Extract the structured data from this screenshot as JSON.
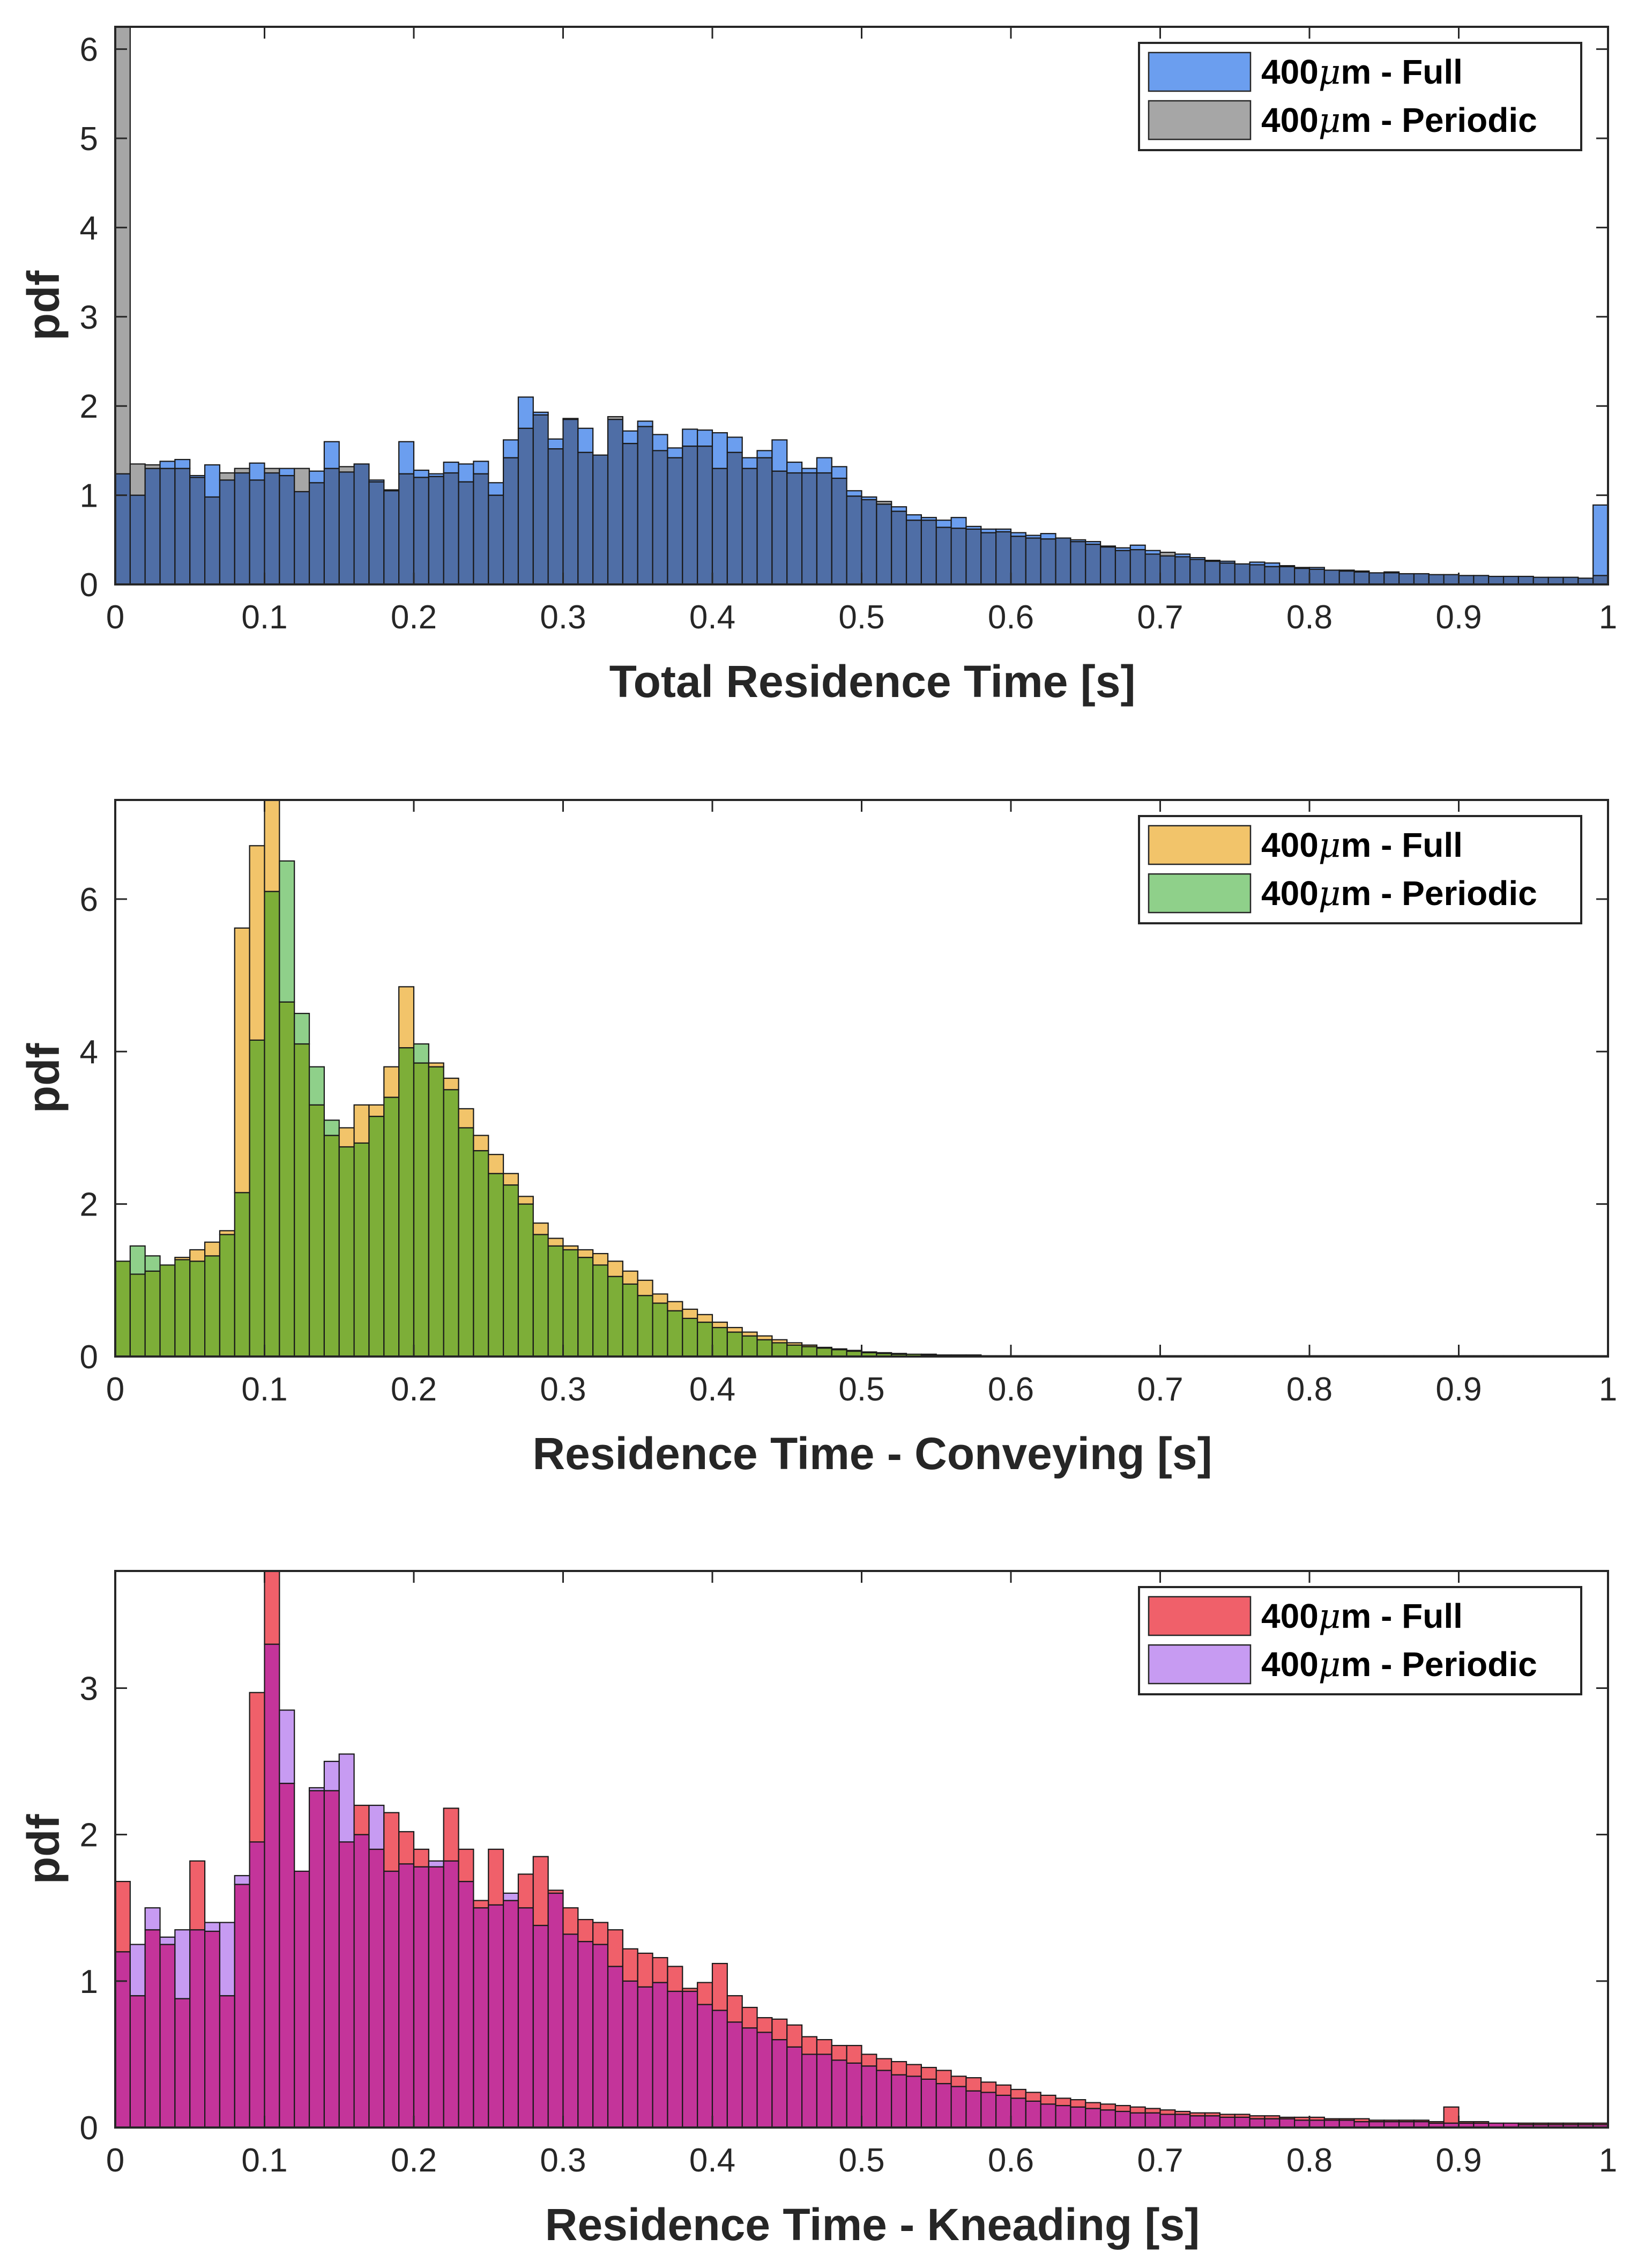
{
  "figure": {
    "description_colors": {
      "axis": "#000000",
      "background": "#ffffff"
    }
  },
  "chart_data": [
    {
      "type": "bar",
      "xlabel": "Total Residence Time [s]",
      "ylabel": "pdf",
      "xlim": [
        0,
        1
      ],
      "ylim": [
        0,
        6.25
      ],
      "xticks": [
        0,
        0.1,
        0.2,
        0.3,
        0.4,
        0.5,
        0.6,
        0.7,
        0.8,
        0.9,
        1
      ],
      "xtick_labels": [
        "0",
        "0.1",
        "0.2",
        "0.3",
        "0.4",
        "0.5",
        "0.6",
        "0.7",
        "0.8",
        "0.9",
        "1"
      ],
      "yticks": [
        0,
        1,
        2,
        3,
        4,
        5,
        6
      ],
      "ytick_labels": [
        "0",
        "1",
        "2",
        "3",
        "4",
        "5",
        "6"
      ],
      "legend_position": "top-right",
      "bin_width": 0.01,
      "series": [
        {
          "name": "400μm - Full",
          "legend_label": "400",
          "legend_suffix": " - Full",
          "color": "#6B9EEF",
          "values": [
            1.24,
            1.0,
            1.3,
            1.38,
            1.4,
            1.22,
            1.34,
            1.17,
            1.25,
            1.36,
            1.25,
            1.3,
            1.04,
            1.27,
            1.6,
            1.26,
            1.35,
            1.17,
            1.06,
            1.6,
            1.28,
            1.24,
            1.37,
            1.35,
            1.38,
            1.14,
            1.62,
            2.1,
            1.93,
            1.63,
            1.86,
            1.75,
            1.45,
            1.85,
            1.72,
            1.83,
            1.68,
            1.53,
            1.74,
            1.73,
            1.7,
            1.65,
            1.42,
            1.5,
            1.62,
            1.37,
            1.3,
            1.42,
            1.32,
            1.05,
            0.98,
            0.9,
            0.87,
            0.78,
            0.75,
            0.72,
            0.75,
            0.65,
            0.62,
            0.62,
            0.58,
            0.55,
            0.57,
            0.52,
            0.5,
            0.48,
            0.42,
            0.41,
            0.44,
            0.38,
            0.32,
            0.34,
            0.3,
            0.27,
            0.26,
            0.23,
            0.25,
            0.24,
            0.21,
            0.18,
            0.19,
            0.16,
            0.16,
            0.15,
            0.13,
            0.14,
            0.12,
            0.12,
            0.11,
            0.11,
            0.1,
            0.1,
            0.09,
            0.09,
            0.09,
            0.08,
            0.08,
            0.08,
            0.07,
            0.89
          ]
        },
        {
          "name": "400μm - Periodic",
          "legend_label": "400",
          "legend_suffix": " - Periodic",
          "color": "#A6A6A6",
          "values": [
            6.3,
            1.35,
            1.34,
            1.3,
            1.3,
            1.2,
            0.98,
            1.25,
            1.3,
            1.17,
            1.3,
            1.22,
            1.3,
            1.14,
            1.3,
            1.32,
            1.35,
            1.15,
            1.05,
            1.24,
            1.2,
            1.21,
            1.25,
            1.15,
            1.24,
            1.0,
            1.42,
            1.75,
            1.9,
            1.52,
            1.85,
            1.48,
            1.45,
            1.88,
            1.58,
            1.77,
            1.5,
            1.42,
            1.55,
            1.55,
            1.3,
            1.48,
            1.3,
            1.42,
            1.27,
            1.25,
            1.25,
            1.25,
            1.19,
            0.99,
            0.95,
            0.93,
            0.82,
            0.72,
            0.72,
            0.64,
            0.63,
            0.62,
            0.58,
            0.59,
            0.54,
            0.52,
            0.51,
            0.52,
            0.48,
            0.45,
            0.43,
            0.38,
            0.39,
            0.34,
            0.36,
            0.31,
            0.28,
            0.26,
            0.24,
            0.23,
            0.22,
            0.2,
            0.2,
            0.19,
            0.17,
            0.16,
            0.15,
            0.14,
            0.13,
            0.13,
            0.12,
            0.12,
            0.11,
            0.11,
            0.1,
            0.1,
            0.09,
            0.09,
            0.09,
            0.08,
            0.08,
            0.08,
            0.07,
            0.1
          ]
        }
      ]
    },
    {
      "type": "bar",
      "xlabel": "Residence Time - Conveying [s]",
      "ylabel": "pdf",
      "xlim": [
        0,
        1
      ],
      "ylim": [
        0,
        7.3
      ],
      "xticks": [
        0,
        0.1,
        0.2,
        0.3,
        0.4,
        0.5,
        0.6,
        0.7,
        0.8,
        0.9,
        1
      ],
      "xtick_labels": [
        "0",
        "0.1",
        "0.2",
        "0.3",
        "0.4",
        "0.5",
        "0.6",
        "0.7",
        "0.8",
        "0.9",
        "1"
      ],
      "yticks": [
        0,
        2,
        4,
        6
      ],
      "ytick_labels": [
        "0",
        "2",
        "4",
        "6"
      ],
      "legend_position": "top-right",
      "bin_width": 0.01,
      "series": [
        {
          "name": "400μm - Full",
          "legend_label": "400",
          "legend_suffix": " - Full",
          "color": "#F2C46A",
          "values": [
            1.25,
            1.08,
            1.12,
            1.2,
            1.3,
            1.4,
            1.5,
            1.65,
            5.62,
            6.7,
            7.3,
            4.65,
            4.1,
            3.3,
            2.9,
            3.0,
            3.3,
            3.3,
            3.8,
            4.85,
            3.85,
            3.85,
            3.65,
            3.25,
            2.9,
            2.65,
            2.4,
            2.1,
            1.75,
            1.55,
            1.45,
            1.4,
            1.35,
            1.25,
            1.12,
            1.0,
            0.82,
            0.72,
            0.62,
            0.55,
            0.45,
            0.38,
            0.32,
            0.27,
            0.22,
            0.18,
            0.15,
            0.12,
            0.1,
            0.08,
            0.06,
            0.05,
            0.04,
            0.03,
            0.03,
            0.02,
            0.02,
            0.02,
            0.01,
            0.01,
            0.01,
            0.01,
            0.01,
            0.01,
            0.01,
            0.01,
            0.01,
            0.01,
            0.01,
            0.01,
            0.01,
            0.01,
            0.01,
            0.01,
            0.01,
            0.01,
            0.01,
            0.01,
            0.01,
            0.01,
            0.01,
            0.01,
            0.01,
            0.01,
            0.01,
            0.01,
            0.01,
            0.01,
            0.01,
            0.01,
            0.01,
            0.01,
            0.01,
            0.01,
            0.01,
            0.01,
            0.01,
            0.01,
            0.01,
            0.01
          ]
        },
        {
          "name": "400μm - Periodic",
          "legend_label": "400",
          "legend_suffix": " - Periodic",
          "color": "#8FD08A",
          "values": [
            1.25,
            1.45,
            1.32,
            1.2,
            1.27,
            1.25,
            1.32,
            1.6,
            2.15,
            4.15,
            6.1,
            6.5,
            4.5,
            3.8,
            3.1,
            2.75,
            2.8,
            3.15,
            3.4,
            4.05,
            4.1,
            3.8,
            3.5,
            3.0,
            2.7,
            2.4,
            2.25,
            2.0,
            1.6,
            1.45,
            1.4,
            1.3,
            1.2,
            1.05,
            0.95,
            0.8,
            0.7,
            0.6,
            0.5,
            0.45,
            0.38,
            0.32,
            0.27,
            0.22,
            0.18,
            0.15,
            0.13,
            0.11,
            0.09,
            0.07,
            0.05,
            0.04,
            0.03,
            0.03,
            0.02,
            0.02,
            0.02,
            0.01,
            0.01,
            0.01,
            0.01,
            0.01,
            0.01,
            0.01,
            0.01,
            0.01,
            0.01,
            0.01,
            0.01,
            0.01,
            0.01,
            0.01,
            0.01,
            0.01,
            0.01,
            0.01,
            0.01,
            0.01,
            0.01,
            0.01,
            0.01,
            0.01,
            0.01,
            0.01,
            0.01,
            0.01,
            0.01,
            0.01,
            0.01,
            0.01,
            0.01,
            0.01,
            0.01,
            0.01,
            0.01,
            0.01,
            0.01,
            0.01,
            0.01,
            0.01
          ]
        }
      ]
    },
    {
      "type": "bar",
      "xlabel": "Residence Time - Kneading [s]",
      "ylabel": "pdf",
      "xlim": [
        0,
        1
      ],
      "ylim": [
        0,
        3.8
      ],
      "xticks": [
        0,
        0.1,
        0.2,
        0.3,
        0.4,
        0.5,
        0.6,
        0.7,
        0.8,
        0.9,
        1
      ],
      "xtick_labels": [
        "0",
        "0.1",
        "0.2",
        "0.3",
        "0.4",
        "0.5",
        "0.6",
        "0.7",
        "0.8",
        "0.9",
        "1"
      ],
      "yticks": [
        0,
        1,
        2,
        3
      ],
      "ytick_labels": [
        "0",
        "1",
        "2",
        "3"
      ],
      "legend_position": "top-right",
      "bin_width": 0.01,
      "series": [
        {
          "name": "400μm - Full",
          "legend_label": "400",
          "legend_suffix": " - Full",
          "color": "#F0606A",
          "values": [
            1.68,
            0.9,
            1.35,
            1.25,
            0.88,
            1.82,
            1.34,
            0.9,
            1.66,
            2.97,
            3.8,
            2.35,
            1.75,
            2.3,
            2.3,
            1.95,
            2.2,
            1.9,
            2.15,
            2.02,
            1.9,
            1.78,
            2.18,
            1.9,
            1.55,
            1.9,
            1.55,
            1.73,
            1.85,
            1.62,
            1.5,
            1.42,
            1.4,
            1.35,
            1.22,
            1.19,
            1.16,
            1.1,
            0.95,
            0.99,
            1.12,
            0.9,
            0.82,
            0.75,
            0.74,
            0.7,
            0.62,
            0.6,
            0.56,
            0.56,
            0.5,
            0.47,
            0.45,
            0.43,
            0.41,
            0.39,
            0.35,
            0.34,
            0.31,
            0.29,
            0.26,
            0.24,
            0.22,
            0.2,
            0.19,
            0.17,
            0.16,
            0.15,
            0.14,
            0.13,
            0.12,
            0.11,
            0.1,
            0.1,
            0.09,
            0.09,
            0.08,
            0.08,
            0.07,
            0.07,
            0.07,
            0.06,
            0.06,
            0.06,
            0.05,
            0.05,
            0.05,
            0.05,
            0.04,
            0.14,
            0.04,
            0.04,
            0.03,
            0.03,
            0.03,
            0.03,
            0.03,
            0.03,
            0.03,
            0.03
          ]
        },
        {
          "name": "400μm - Periodic",
          "legend_label": "400",
          "legend_suffix": " - Periodic",
          "color": "#C79BF2",
          "values": [
            1.2,
            1.25,
            1.5,
            1.3,
            1.35,
            1.35,
            1.4,
            1.4,
            1.72,
            1.95,
            3.3,
            2.85,
            1.75,
            2.32,
            2.5,
            2.55,
            2.0,
            2.2,
            1.75,
            1.8,
            1.78,
            1.82,
            1.82,
            1.68,
            1.5,
            1.52,
            1.6,
            1.5,
            1.38,
            1.6,
            1.32,
            1.27,
            1.25,
            1.1,
            1.0,
            0.96,
            0.99,
            0.93,
            0.93,
            0.84,
            0.8,
            0.72,
            0.68,
            0.65,
            0.6,
            0.55,
            0.5,
            0.5,
            0.46,
            0.44,
            0.42,
            0.39,
            0.36,
            0.35,
            0.33,
            0.3,
            0.28,
            0.25,
            0.24,
            0.22,
            0.2,
            0.18,
            0.16,
            0.15,
            0.14,
            0.13,
            0.12,
            0.11,
            0.1,
            0.1,
            0.09,
            0.09,
            0.08,
            0.08,
            0.07,
            0.07,
            0.06,
            0.06,
            0.06,
            0.05,
            0.05,
            0.05,
            0.05,
            0.04,
            0.04,
            0.04,
            0.04,
            0.04,
            0.03,
            0.03,
            0.03,
            0.03,
            0.03,
            0.03,
            0.02,
            0.02,
            0.02,
            0.02,
            0.02,
            0.02
          ]
        }
      ]
    }
  ]
}
